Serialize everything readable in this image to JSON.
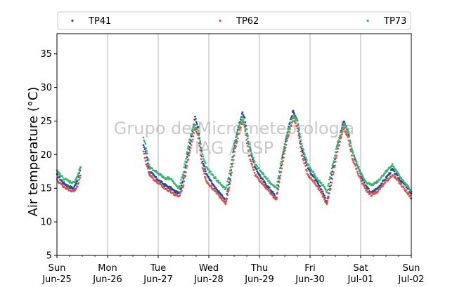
{
  "chart_data": {
    "type": "scatter",
    "ylabel": "Air temperature (°C)",
    "ylim": [
      5,
      38
    ],
    "yticks": [
      5,
      10,
      15,
      20,
      25,
      30,
      35
    ],
    "xlim_days": [
      "2023-06-25",
      "2023-07-02"
    ],
    "xtick_labels": [
      {
        "day": "Sun",
        "date": "Jun-25"
      },
      {
        "day": "Mon",
        "date": "Jun-26"
      },
      {
        "day": "Tue",
        "date": "Jun-27"
      },
      {
        "day": "Wed",
        "date": "Jun-28"
      },
      {
        "day": "Thu",
        "date": "Jun-29"
      },
      {
        "day": "Fri",
        "date": "Jun-30"
      },
      {
        "day": "Sat",
        "date": "Jul-01"
      },
      {
        "day": "Sun",
        "date": "Jul-02"
      }
    ],
    "grid": "vertical",
    "legend": "top, horizontal",
    "watermark": [
      "Grupo de Micrometeorologia",
      "IAG / USP"
    ],
    "series": [
      {
        "name": "TP41",
        "color": "#1f4e96",
        "points": [
          [
            "2023-06-25 00:00",
            17.0
          ],
          [
            "2023-06-25 03:00",
            15.8
          ],
          [
            "2023-06-25 06:00",
            15.2
          ],
          [
            "2023-06-25 08:00",
            15.0
          ],
          [
            "2023-06-25 10:00",
            16.5
          ],
          [
            "2023-06-25 11:30",
            18.3
          ],
          [
            "2023-06-26 17:00",
            21.5
          ],
          [
            "2023-06-26 18:00",
            20.5
          ],
          [
            "2023-06-26 20:00",
            17.5
          ],
          [
            "2023-06-26 23:00",
            16.5
          ],
          [
            "2023-06-27 03:00",
            15.5
          ],
          [
            "2023-06-27 06:00",
            15.0
          ],
          [
            "2023-06-27 08:00",
            14.5
          ],
          [
            "2023-06-27 10:00",
            14.2
          ],
          [
            "2023-06-27 12:00",
            16.5
          ],
          [
            "2023-06-27 14:00",
            20.0
          ],
          [
            "2023-06-27 16:00",
            23.0
          ],
          [
            "2023-06-27 17:30",
            25.6
          ],
          [
            "2023-06-27 19:00",
            24.0
          ],
          [
            "2023-06-27 21:00",
            19.0
          ],
          [
            "2023-06-27 23:00",
            17.0
          ],
          [
            "2023-06-28 03:00",
            15.0
          ],
          [
            "2023-06-28 06:00",
            14.0
          ],
          [
            "2023-06-28 08:00",
            13.0
          ],
          [
            "2023-06-28 10:00",
            16.5
          ],
          [
            "2023-06-28 12:00",
            21.0
          ],
          [
            "2023-06-28 14:00",
            24.0
          ],
          [
            "2023-06-28 16:00",
            26.3
          ],
          [
            "2023-06-28 17:00",
            25.5
          ],
          [
            "2023-06-28 19:00",
            21.5
          ],
          [
            "2023-06-28 22:00",
            18.0
          ],
          [
            "2023-06-29 02:00",
            16.0
          ],
          [
            "2023-06-29 06:00",
            14.5
          ],
          [
            "2023-06-29 08:00",
            13.5
          ],
          [
            "2023-06-29 10:00",
            18.0
          ],
          [
            "2023-06-29 13:00",
            23.0
          ],
          [
            "2023-06-29 16:00",
            26.6
          ],
          [
            "2023-06-29 18:00",
            25.0
          ],
          [
            "2023-06-29 20:00",
            21.0
          ],
          [
            "2023-06-29 23:00",
            18.0
          ],
          [
            "2023-06-30 03:00",
            16.0
          ],
          [
            "2023-06-30 06:00",
            14.5
          ],
          [
            "2023-06-30 08:00",
            12.8
          ],
          [
            "2023-06-30 10:00",
            16.5
          ],
          [
            "2023-06-30 13:00",
            21.5
          ],
          [
            "2023-06-30 16:00",
            25.0
          ],
          [
            "2023-06-30 18:00",
            23.5
          ],
          [
            "2023-06-30 20:00",
            20.5
          ],
          [
            "2023-06-30 23:00",
            18.0
          ],
          [
            "2023-07-01 02:00",
            15.5
          ],
          [
            "2023-07-01 05:00",
            14.3
          ],
          [
            "2023-07-01 08:00",
            15.0
          ],
          [
            "2023-07-01 12:00",
            16.5
          ],
          [
            "2023-07-01 15:00",
            17.8
          ],
          [
            "2023-07-01 18:00",
            16.5
          ],
          [
            "2023-07-01 21:00",
            15.5
          ],
          [
            "2023-07-02 00:00",
            14.2
          ]
        ]
      },
      {
        "name": "TP62",
        "color": "#d9534f",
        "points": [
          [
            "2023-06-25 00:00",
            16.2
          ],
          [
            "2023-06-25 03:00",
            15.3
          ],
          [
            "2023-06-25 06:00",
            14.8
          ],
          [
            "2023-06-25 08:00",
            14.5
          ],
          [
            "2023-06-25 10:00",
            15.5
          ],
          [
            "2023-06-25 11:30",
            17.2
          ],
          [
            "2023-06-26 17:00",
            20.5
          ],
          [
            "2023-06-26 18:00",
            19.0
          ],
          [
            "2023-06-26 20:00",
            17.0
          ],
          [
            "2023-06-26 23:00",
            16.0
          ],
          [
            "2023-06-27 03:00",
            15.0
          ],
          [
            "2023-06-27 06:00",
            14.5
          ],
          [
            "2023-06-27 08:00",
            14.0
          ],
          [
            "2023-06-27 10:00",
            13.8
          ],
          [
            "2023-06-27 12:00",
            15.5
          ],
          [
            "2023-06-27 14:00",
            19.0
          ],
          [
            "2023-06-27 16:00",
            22.0
          ],
          [
            "2023-06-27 17:30",
            24.0
          ],
          [
            "2023-06-27 19:00",
            22.5
          ],
          [
            "2023-06-27 21:00",
            18.0
          ],
          [
            "2023-06-27 23:00",
            16.0
          ],
          [
            "2023-06-28 03:00",
            14.5
          ],
          [
            "2023-06-28 06:00",
            13.5
          ],
          [
            "2023-06-28 08:00",
            12.8
          ],
          [
            "2023-06-28 10:00",
            15.5
          ],
          [
            "2023-06-28 12:00",
            20.0
          ],
          [
            "2023-06-28 14:00",
            23.0
          ],
          [
            "2023-06-28 16:00",
            25.0
          ],
          [
            "2023-06-28 17:00",
            24.0
          ],
          [
            "2023-06-28 19:00",
            20.0
          ],
          [
            "2023-06-28 22:00",
            17.0
          ],
          [
            "2023-06-29 02:00",
            15.5
          ],
          [
            "2023-06-29 06:00",
            14.0
          ],
          [
            "2023-06-29 08:00",
            13.2
          ],
          [
            "2023-06-29 10:00",
            17.0
          ],
          [
            "2023-06-29 13:00",
            22.0
          ],
          [
            "2023-06-29 16:00",
            25.5
          ],
          [
            "2023-06-29 18:00",
            24.0
          ],
          [
            "2023-06-29 20:00",
            20.0
          ],
          [
            "2023-06-29 23:00",
            17.0
          ],
          [
            "2023-06-30 03:00",
            15.5
          ],
          [
            "2023-06-30 06:00",
            14.0
          ],
          [
            "2023-06-30 08:00",
            12.5
          ],
          [
            "2023-06-30 10:00",
            15.5
          ],
          [
            "2023-06-30 13:00",
            20.5
          ],
          [
            "2023-06-30 16:00",
            24.0
          ],
          [
            "2023-06-30 18:00",
            22.5
          ],
          [
            "2023-06-30 20:00",
            19.5
          ],
          [
            "2023-06-30 23:00",
            17.0
          ],
          [
            "2023-07-01 02:00",
            15.0
          ],
          [
            "2023-07-01 05:00",
            14.0
          ],
          [
            "2023-07-01 08:00",
            14.5
          ],
          [
            "2023-07-01 12:00",
            16.0
          ],
          [
            "2023-07-01 15:00",
            17.0
          ],
          [
            "2023-07-01 18:00",
            16.0
          ],
          [
            "2023-07-01 21:00",
            14.8
          ],
          [
            "2023-07-02 00:00",
            13.5
          ]
        ]
      },
      {
        "name": "TP73",
        "color": "#3cb371",
        "points": [
          [
            "2023-06-25 00:00",
            17.5
          ],
          [
            "2023-06-25 03:00",
            16.5
          ],
          [
            "2023-06-25 06:00",
            16.0
          ],
          [
            "2023-06-25 08:00",
            15.8
          ],
          [
            "2023-06-25 10:00",
            17.0
          ],
          [
            "2023-06-25 11:30",
            18.5
          ],
          [
            "2023-06-26 17:00",
            22.5
          ],
          [
            "2023-06-26 18:00",
            21.5
          ],
          [
            "2023-06-26 20:00",
            18.0
          ],
          [
            "2023-06-26 23:00",
            17.5
          ],
          [
            "2023-06-27 03:00",
            16.5
          ],
          [
            "2023-06-27 06:00",
            16.5
          ],
          [
            "2023-06-27 08:00",
            15.5
          ],
          [
            "2023-06-27 10:00",
            15.0
          ],
          [
            "2023-06-27 12:00",
            17.5
          ],
          [
            "2023-06-27 14:00",
            21.0
          ],
          [
            "2023-06-27 16:00",
            23.5
          ],
          [
            "2023-06-27 17:30",
            24.5
          ],
          [
            "2023-06-27 19:00",
            23.5
          ],
          [
            "2023-06-27 21:00",
            20.0
          ],
          [
            "2023-06-27 23:00",
            18.0
          ],
          [
            "2023-06-28 03:00",
            16.5
          ],
          [
            "2023-06-28 06:00",
            15.5
          ],
          [
            "2023-06-28 08:00",
            14.8
          ],
          [
            "2023-06-28 10:00",
            17.5
          ],
          [
            "2023-06-28 12:00",
            21.5
          ],
          [
            "2023-06-28 14:00",
            24.0
          ],
          [
            "2023-06-28 16:00",
            25.5
          ],
          [
            "2023-06-28 17:00",
            24.5
          ],
          [
            "2023-06-28 19:00",
            21.5
          ],
          [
            "2023-06-28 22:00",
            18.5
          ],
          [
            "2023-06-29 02:00",
            17.0
          ],
          [
            "2023-06-29 06:00",
            15.5
          ],
          [
            "2023-06-29 08:00",
            15.0
          ],
          [
            "2023-06-29 10:00",
            18.5
          ],
          [
            "2023-06-29 13:00",
            23.0
          ],
          [
            "2023-06-29 16:00",
            25.8
          ],
          [
            "2023-06-29 18:00",
            25.0
          ],
          [
            "2023-06-29 20:00",
            21.5
          ],
          [
            "2023-06-29 23:00",
            18.5
          ],
          [
            "2023-06-30 03:00",
            16.5
          ],
          [
            "2023-06-30 06:00",
            15.5
          ],
          [
            "2023-06-30 08:00",
            14.5
          ],
          [
            "2023-06-30 10:00",
            17.5
          ],
          [
            "2023-06-30 13:00",
            21.5
          ],
          [
            "2023-06-30 16:00",
            24.5
          ],
          [
            "2023-06-30 18:00",
            23.5
          ],
          [
            "2023-06-30 20:00",
            20.5
          ],
          [
            "2023-06-30 23:00",
            18.0
          ],
          [
            "2023-07-01 02:00",
            16.0
          ],
          [
            "2023-07-01 05:00",
            15.5
          ],
          [
            "2023-07-01 08:00",
            16.0
          ],
          [
            "2023-07-01 12:00",
            17.5
          ],
          [
            "2023-07-01 15:00",
            18.5
          ],
          [
            "2023-07-01 18:00",
            17.0
          ],
          [
            "2023-07-01 21:00",
            15.8
          ],
          [
            "2023-07-02 00:00",
            14.5
          ]
        ]
      }
    ]
  }
}
